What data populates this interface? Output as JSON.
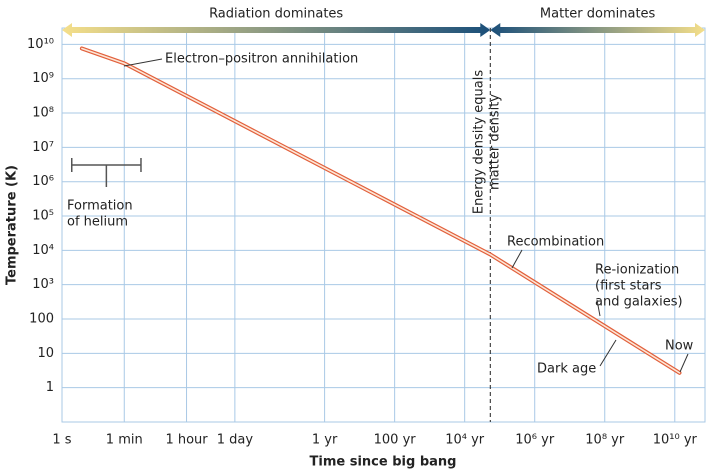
{
  "chart_data": {
    "type": "line",
    "x_label": "Time since big bang",
    "y_label": "Temperature (K)",
    "log_x": true,
    "log_y": true,
    "grid": true,
    "color": "#e2603c",
    "x": [
      3.7,
      60,
      1700000000000,
      430000000000000000
    ],
    "values": [
      7600000000,
      2800000000,
      7600,
      2.7
    ],
    "xlim": [
      1,
      2300000000000000000
    ],
    "ylim": [
      0.1,
      30000000000
    ],
    "xticks": [
      {
        "value": 1,
        "label": "1 s"
      },
      {
        "value": 60,
        "label": "1 min"
      },
      {
        "value": 3600,
        "label": "1 hour"
      },
      {
        "value": 86400,
        "label": "1 day"
      },
      {
        "value": 31557600,
        "label": "1 yr"
      },
      {
        "value": 3155760000,
        "label": "100 yr"
      },
      {
        "value": 315576000000,
        "label": "10⁴ yr"
      },
      {
        "value": 31557600000000,
        "label": "10⁶ yr"
      },
      {
        "value": 3155760000000000,
        "label": "10⁸ yr"
      },
      {
        "value": 315576000000000000,
        "label": "10¹⁰ yr"
      }
    ],
    "yticks": [
      {
        "value": 10000000000,
        "label": "10¹⁰"
      },
      {
        "value": 1000000000,
        "label": "10⁹"
      },
      {
        "value": 100000000,
        "label": "10⁸"
      },
      {
        "value": 10000000,
        "label": "10⁷"
      },
      {
        "value": 1000000,
        "label": "10⁶"
      },
      {
        "value": 100000,
        "label": "10⁵"
      },
      {
        "value": 10000,
        "label": "10⁴"
      },
      {
        "value": 1000,
        "label": "10³"
      },
      100,
      10,
      1
    ],
    "eras": [
      "Radiation dominates",
      "Matter dominates"
    ],
    "helium_range": [
      1.9,
      180
    ],
    "annotations": [
      {
        "lines": [
          "Electron–positron annihilation"
        ]
      },
      {
        "lines": [
          "Formation",
          "of helium"
        ]
      },
      {
        "lines": [
          "Energy density equals",
          "matter density"
        ]
      },
      {
        "lines": [
          "Recombination"
        ]
      },
      {
        "lines": [
          "Re-ionization",
          "(first stars",
          "and galaxies)"
        ]
      },
      {
        "lines": [
          "Dark age"
        ]
      },
      {
        "lines": [
          "Now"
        ]
      }
    ]
  }
}
